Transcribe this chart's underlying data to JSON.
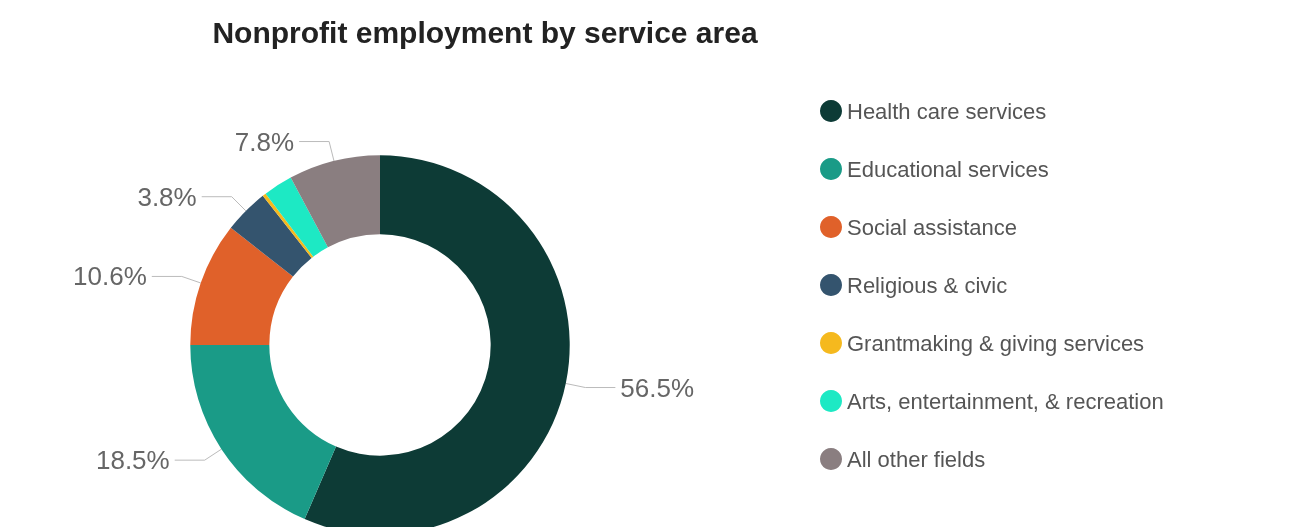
{
  "chart_data": {
    "type": "donut",
    "title": "Nonprofit employment by service area",
    "categories": [
      "Health care services",
      "Educational services",
      "Social assistance",
      "Religious & civic",
      "Grantmaking & giving services",
      "Arts, entertainment, & recreation",
      "All other fields"
    ],
    "values": [
      56.5,
      18.5,
      10.6,
      3.8,
      0.3,
      2.5,
      7.8
    ],
    "colors": [
      "#0d3b36",
      "#1a9b87",
      "#e0612a",
      "#34546e",
      "#f5b91e",
      "#1de9c4",
      "#8a7e80"
    ],
    "value_labels": [
      "56.5%",
      "18.5%",
      "10.6%",
      "3.8%",
      null,
      null,
      "7.8%"
    ],
    "legend": "right"
  }
}
